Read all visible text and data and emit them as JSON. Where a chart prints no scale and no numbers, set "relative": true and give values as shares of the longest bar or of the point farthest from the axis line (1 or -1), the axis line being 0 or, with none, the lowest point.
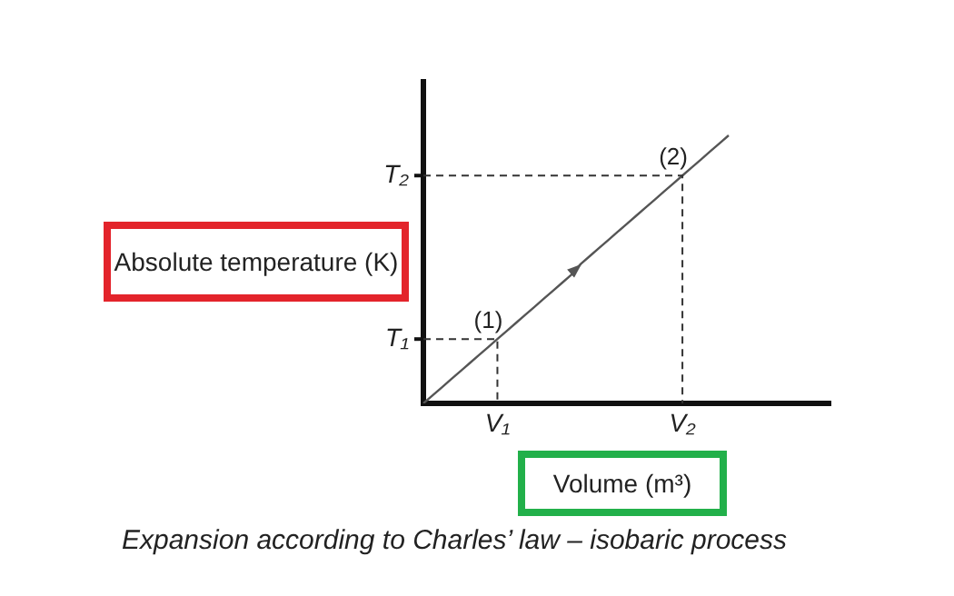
{
  "chart_data": {
    "type": "line",
    "relative": true,
    "title": "Expansion according to Charles’ law – isobaric process",
    "xlabel": "Volume (m³)",
    "ylabel": "Absolute temperature (K)",
    "categories": [
      null,
      null,
      null,
      null,
      null,
      null,
      null,
      null,
      "V₁",
      null,
      null,
      null,
      null,
      null,
      null,
      null,
      null,
      null,
      null,
      null,
      null,
      null,
      null,
      null,
      null,
      null,
      null,
      null,
      "V₂",
      null,
      null,
      null,
      null,
      null,
      null,
      null,
      null,
      null,
      null,
      null,
      null,
      null,
      null,
      null,
      null
    ],
    "series": [
      {
        "color": "#555555",
        "values": [
          0,
          0.03,
          0.06,
          0.09,
          0.12,
          0.15,
          0.18,
          0.21,
          0.24,
          0.27,
          0.3,
          0.33,
          0.36,
          0.39,
          0.42,
          0.45,
          0.48,
          0.52,
          0.55,
          0.58,
          0.61,
          0.64,
          0.67,
          0.7,
          0.73,
          0.76,
          0.79,
          0.82,
          0.85,
          0.88,
          0.91,
          0.94,
          0.97,
          1.0,
          null,
          null,
          null,
          null,
          null,
          null,
          null,
          null,
          null,
          null,
          null
        ]
      }
    ],
    "annotations": [
      {
        "text": "(1)",
        "x": "V₁",
        "y": 0.24
      },
      {
        "text": "(2)",
        "x": "V₂",
        "y": 0.85
      },
      "T₁",
      "T₂"
    ],
    "legend": false,
    "marker": "none",
    "line_style": "solid"
  }
}
